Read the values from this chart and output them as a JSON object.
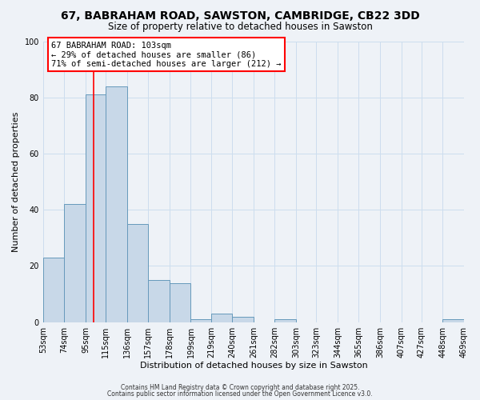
{
  "title": "67, BABRAHAM ROAD, SAWSTON, CAMBRIDGE, CB22 3DD",
  "subtitle": "Size of property relative to detached houses in Sawston",
  "xlabel": "Distribution of detached houses by size in Sawston",
  "ylabel": "Number of detached properties",
  "footer_line1": "Contains HM Land Registry data © Crown copyright and database right 2025.",
  "footer_line2": "Contains public sector information licensed under the Open Government Licence v3.0.",
  "bin_labels": [
    "53sqm",
    "74sqm",
    "95sqm",
    "115sqm",
    "136sqm",
    "157sqm",
    "178sqm",
    "199sqm",
    "219sqm",
    "240sqm",
    "261sqm",
    "282sqm",
    "303sqm",
    "323sqm",
    "344sqm",
    "365sqm",
    "386sqm",
    "407sqm",
    "427sqm",
    "448sqm",
    "469sqm"
  ],
  "bar_heights": [
    23,
    42,
    81,
    84,
    35,
    15,
    14,
    1,
    3,
    2,
    0,
    1,
    0,
    0,
    0,
    0,
    0,
    0,
    0,
    1,
    0
  ],
  "bar_color": "#c8d8e8",
  "bar_edge_color": "#6699bb",
  "grid_color": "#ccddee",
  "background_color": "#eef2f7",
  "annotation_box_text": "67 BABRAHAM ROAD: 103sqm\n← 29% of detached houses are smaller (86)\n71% of semi-detached houses are larger (212) →",
  "red_line_x": 103,
  "ylim": [
    0,
    100
  ],
  "yticks": [
    0,
    20,
    40,
    60,
    80,
    100
  ],
  "bin_edges": [
    53,
    74,
    95,
    115,
    136,
    157,
    178,
    199,
    219,
    240,
    261,
    282,
    303,
    323,
    344,
    365,
    386,
    407,
    427,
    448,
    469
  ],
  "title_fontsize": 10,
  "subtitle_fontsize": 8.5,
  "ylabel_fontsize": 8,
  "xlabel_fontsize": 8,
  "tick_fontsize": 7,
  "annotation_fontsize": 7.5,
  "footer_fontsize": 5.5
}
